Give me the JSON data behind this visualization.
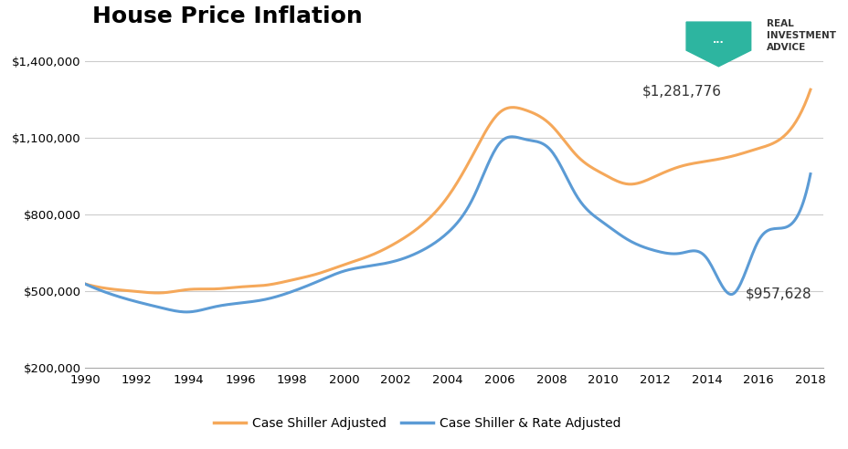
{
  "title": "House Price Inflation",
  "title_fontsize": 18,
  "orange_label": "Case Shiller Adjusted",
  "blue_label": "Case Shiller & Rate Adjusted",
  "annotation_orange": "$1,281,776",
  "annotation_blue": "$957,628",
  "ylim": [
    200000,
    1500000
  ],
  "yticks": [
    200000,
    500000,
    800000,
    1100000,
    1400000
  ],
  "xlim": [
    1990,
    2018.5
  ],
  "xticks": [
    1990,
    1992,
    1994,
    1996,
    1998,
    2000,
    2002,
    2004,
    2006,
    2008,
    2010,
    2012,
    2014,
    2016,
    2018
  ],
  "orange_color": "#F5A85A",
  "blue_color": "#5B9BD5",
  "bg_color": "#FFFFFF",
  "grid_color": "#CCCCCC",
  "orange_data": {
    "years": [
      1990,
      1991,
      1992,
      1993,
      1994,
      1995,
      1996,
      1997,
      1998,
      1999,
      2000,
      2001,
      2002,
      2003,
      2004,
      2005,
      2006,
      2007,
      2008,
      2009,
      2010,
      2011,
      2012,
      2013,
      2014,
      2015,
      2016,
      2017,
      2018
    ],
    "values": [
      530000,
      510000,
      500000,
      495000,
      508000,
      510000,
      518000,
      525000,
      545000,
      570000,
      605000,
      640000,
      690000,
      760000,
      870000,
      1040000,
      1200000,
      1210000,
      1150000,
      1030000,
      960000,
      920000,
      950000,
      990000,
      1010000,
      1030000,
      1060000,
      1110000,
      1290000
    ]
  },
  "blue_data": {
    "years": [
      1990,
      1991,
      1992,
      1993,
      1994,
      1995,
      1996,
      1997,
      1998,
      1999,
      2000,
      2001,
      2002,
      2003,
      2004,
      2005,
      2006,
      2007,
      2008,
      2009,
      2010,
      2011,
      2012,
      2013,
      2014,
      2015,
      2016,
      2017,
      2018
    ],
    "values": [
      530000,
      490000,
      460000,
      435000,
      420000,
      440000,
      455000,
      470000,
      500000,
      540000,
      580000,
      600000,
      620000,
      660000,
      730000,
      870000,
      1080000,
      1095000,
      1050000,
      870000,
      770000,
      700000,
      660000,
      650000,
      630000,
      490000,
      700000,
      750000,
      960000
    ]
  },
  "logo_text": "REAL\nINVESTMENT\nADVICE",
  "logo_color": "#2DB5A0"
}
